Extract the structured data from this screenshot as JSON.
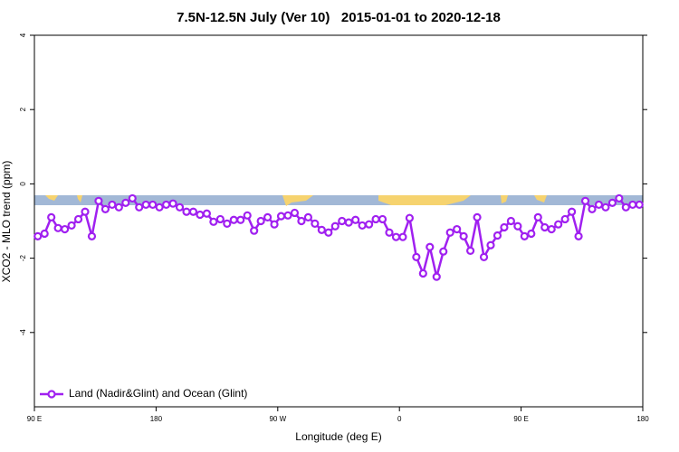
{
  "chart_data": {
    "type": "line",
    "title": "7.5N-12.5N July (Ver 10)   2015-01-01 to 2020-12-18",
    "x_label": "Longitude (deg E)",
    "y_label": "XCO2 - MLO trend (ppm)",
    "xlim": [
      90,
      540
    ],
    "xticks": [
      {
        "value": 90,
        "label": "90 E"
      },
      180,
      {
        "value": 270,
        "label": "90 W"
      },
      {
        "value": 360,
        "label": "0"
      },
      {
        "value": 450,
        "label": "90 E"
      },
      {
        "value": 540,
        "label": "180"
      }
    ],
    "ylim": [
      -6,
      4
    ],
    "yticks": [
      -4,
      -2,
      0,
      2,
      4
    ],
    "legend": "lower left",
    "x": [
      92.5,
      97.5,
      102.5,
      107.5,
      112.5,
      117.5,
      122.5,
      127.5,
      132.5,
      137.5,
      142.5,
      147.5,
      152.5,
      157.5,
      162.5,
      167.5,
      172.5,
      177.5,
      182.5,
      187.5,
      192.5,
      197.5,
      202.5,
      207.5,
      212.5,
      217.5,
      222.5,
      227.5,
      232.5,
      237.5,
      242.5,
      247.5,
      252.5,
      257.5,
      262.5,
      267.5,
      272.5,
      277.5,
      282.5,
      287.5,
      292.5,
      297.5,
      302.5,
      307.5,
      312.5,
      317.5,
      322.5,
      327.5,
      332.5,
      337.5,
      342.5,
      347.5,
      352.5,
      357.5,
      362.5,
      367.5,
      372.5,
      377.5,
      382.5,
      387.5,
      392.5,
      397.5,
      402.5,
      407.5,
      412.5,
      417.5,
      422.5,
      427.5,
      432.5,
      437.5,
      442.5,
      447.5,
      452.5,
      457.5,
      462.5,
      467.5,
      472.5,
      477.5,
      482.5,
      487.5,
      492.5,
      497.5,
      502.5,
      507.5,
      512.5,
      517.5,
      522.5,
      527.5,
      532.5,
      537.5
    ],
    "series": [
      {
        "name": "Land (Nadir&Glint) and Ocean (Glint)",
        "color": "#a020f0",
        "values": [
          -1.41,
          -1.34,
          -0.9,
          -1.19,
          -1.22,
          -1.12,
          -0.95,
          -0.75,
          -1.41,
          -0.46,
          -0.68,
          -0.56,
          -0.63,
          -0.51,
          -0.39,
          -0.63,
          -0.56,
          -0.56,
          -0.63,
          -0.56,
          -0.53,
          -0.63,
          -0.75,
          -0.75,
          -0.83,
          -0.8,
          -1.02,
          -0.95,
          -1.07,
          -0.97,
          -0.97,
          -0.85,
          -1.26,
          -1.0,
          -0.9,
          -1.09,
          -0.87,
          -0.85,
          -0.78,
          -1.0,
          -0.9,
          -1.07,
          -1.24,
          -1.31,
          -1.14,
          -1.0,
          -1.04,
          -0.97,
          -1.12,
          -1.09,
          -0.95,
          -0.95,
          -1.31,
          -1.43,
          -1.43,
          -0.92,
          -1.97,
          -2.41,
          -1.7,
          -2.5,
          -1.82,
          -1.31,
          -1.22,
          -1.41,
          -1.8,
          -0.9,
          -1.97,
          -1.65,
          -1.39,
          -1.17,
          -1.0,
          -1.14,
          -1.41,
          -1.34,
          -0.9,
          -1.17,
          -1.22,
          -1.09,
          -0.95,
          -0.75,
          -1.41,
          -0.46,
          -0.68,
          -0.56,
          -0.63,
          -0.51,
          -0.39,
          -0.63,
          -0.56,
          -0.56
        ]
      }
    ]
  }
}
